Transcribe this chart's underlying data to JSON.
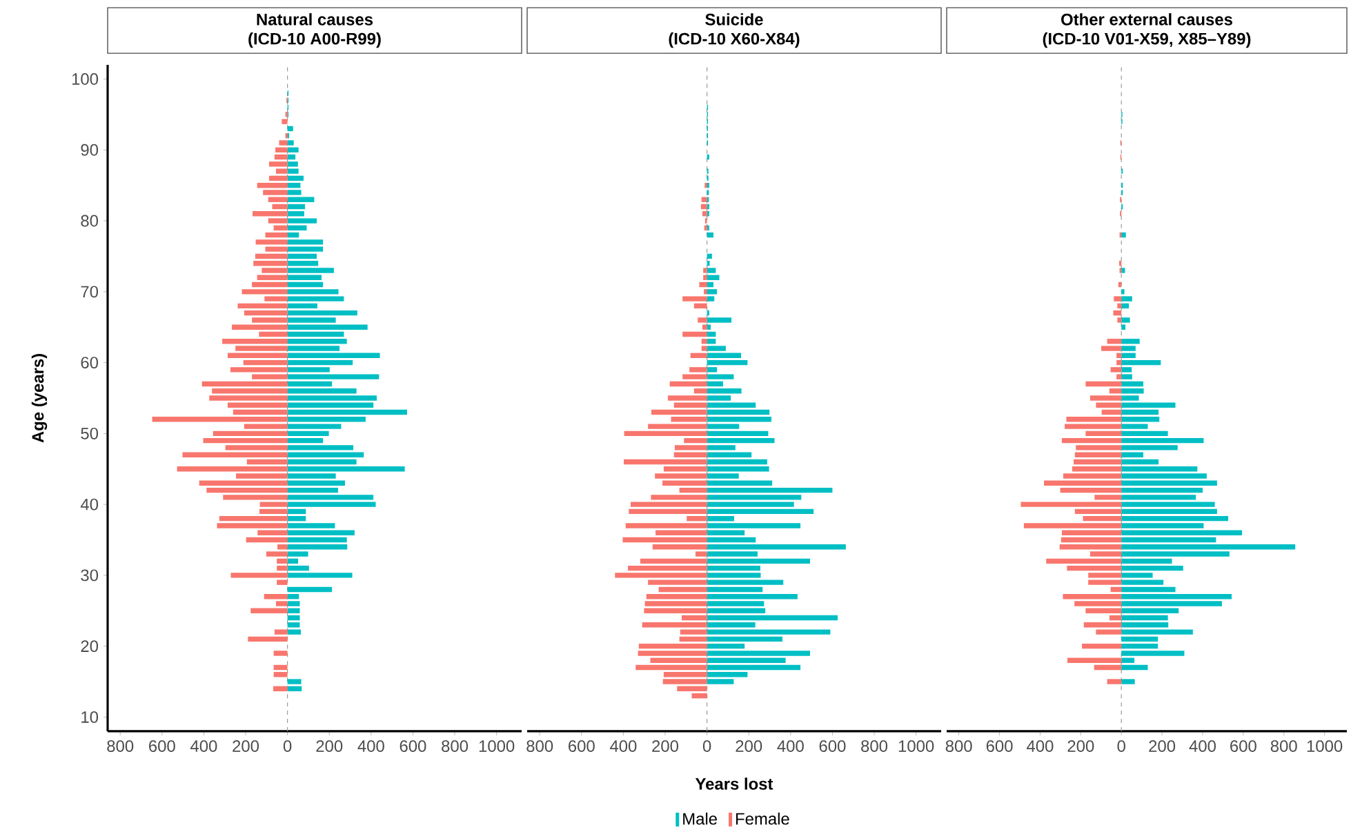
{
  "chart_data": [
    {
      "type": "bar",
      "orientation": "horizontal",
      "stacked": true,
      "title": "Natural causes",
      "subtitle": "(ICD-10 A00-R99)",
      "ylabel": "Age (years)",
      "x": [
        14,
        15,
        16,
        17,
        18,
        19,
        20,
        21,
        22,
        23,
        24,
        25,
        26,
        27,
        28,
        29,
        30,
        31,
        32,
        33,
        34,
        35,
        36,
        37,
        38,
        39,
        40,
        41,
        42,
        43,
        44,
        45,
        46,
        47,
        48,
        49,
        50,
        51,
        52,
        53,
        54,
        55,
        56,
        57,
        58,
        59,
        60,
        61,
        62,
        63,
        64,
        65,
        66,
        67,
        68,
        69,
        70,
        71,
        72,
        73,
        74,
        75,
        76,
        77,
        78,
        79,
        80,
        81,
        82,
        83,
        84,
        85,
        86,
        87,
        88,
        89,
        90,
        91,
        92,
        93,
        94,
        95,
        96,
        97,
        98
      ],
      "series": [
        {
          "color": "#f8766d",
          "values": [
            -68,
            null,
            -66,
            -66,
            null,
            -66,
            null,
            -189,
            -62,
            null,
            null,
            -176,
            -55,
            -112,
            null,
            -51,
            -271,
            -51,
            -51,
            -101,
            -48,
            -198,
            -143,
            -337,
            -326,
            -134,
            -132,
            -308,
            -387,
            -422,
            -246,
            -528,
            -194,
            -502,
            -297,
            -403,
            -356,
            -207,
            -647,
            -260,
            -286,
            -374,
            -361,
            -409,
            -170,
            -273,
            -211,
            -286,
            -249,
            -312,
            -136,
            -266,
            -170,
            -207,
            -238,
            -110,
            -218,
            -170,
            -145,
            -123,
            -163,
            -154,
            -106,
            -152,
            -106,
            -66,
            -92,
            -167,
            -73,
            -92,
            -117,
            -145,
            -88,
            -55,
            -88,
            -62,
            -58,
            -40,
            -10,
            null,
            -27,
            -10,
            null,
            -5,
            null
          ]
        },
        {
          "color": "#00bfc4",
          "values": [
            68,
            66,
            null,
            null,
            null,
            null,
            null,
            null,
            64,
            59,
            59,
            59,
            59,
            55,
            213,
            null,
            310,
            103,
            51,
            99,
            286,
            284,
            321,
            227,
            88,
            88,
            422,
            411,
            242,
            275,
            231,
            561,
            330,
            365,
            315,
            170,
            198,
            257,
            374,
            572,
            411,
            427,
            330,
            213,
            438,
            202,
            312,
            442,
            249,
            284,
            270,
            383,
            231,
            334,
            143,
            270,
            244,
            170,
            163,
            222,
            147,
            140,
            170,
            170,
            55,
            92,
            140,
            80,
            84,
            128,
            66,
            62,
            77,
            53,
            50,
            38,
            53,
            30,
            8,
            27,
            null,
            5,
            5,
            5,
            5
          ]
        }
      ],
      "xlim": [
        -860,
        1120
      ],
      "ylim": [
        8,
        102
      ],
      "xticks": [
        {
          "value": -800,
          "label": "800"
        },
        {
          "value": -600,
          "label": "600"
        },
        {
          "value": -400,
          "label": "400"
        },
        {
          "value": -200,
          "label": "200"
        },
        0,
        200,
        400,
        600,
        800,
        1000
      ],
      "yticks": [
        10,
        20,
        30,
        40,
        50,
        60,
        70,
        80,
        90,
        100
      ],
      "ref_lines": [
        {
          "axis": "x",
          "value": 0,
          "color": "#999999",
          "line_style": "dashed"
        }
      ]
    },
    {
      "type": "bar",
      "orientation": "horizontal",
      "stacked": true,
      "title": "Suicide",
      "subtitle": "(ICD-10 X60-X84)",
      "xlabel": "Years lost",
      "legend": "bottom",
      "tick_labels": "x",
      "x": [
        13,
        14,
        15,
        16,
        17,
        18,
        19,
        20,
        21,
        22,
        23,
        24,
        25,
        26,
        27,
        28,
        29,
        30,
        31,
        32,
        33,
        34,
        35,
        36,
        37,
        38,
        39,
        40,
        41,
        42,
        43,
        44,
        45,
        46,
        47,
        48,
        49,
        50,
        51,
        52,
        53,
        54,
        55,
        56,
        57,
        58,
        59,
        60,
        61,
        62,
        63,
        64,
        65,
        66,
        67,
        68,
        69,
        70,
        71,
        72,
        73,
        74,
        75,
        76,
        77,
        78,
        79,
        80,
        81,
        82,
        83,
        84,
        85,
        86,
        87,
        88,
        89,
        90,
        91,
        92,
        93,
        94,
        95,
        96
      ],
      "series": [
        {
          "name": "Female",
          "color": "#f8766d",
          "values": [
            -73,
            -143,
            -211,
            -207,
            -341,
            -271,
            -330,
            -326,
            -132,
            -128,
            -310,
            -121,
            -301,
            -297,
            -290,
            -231,
            -282,
            -440,
            -378,
            -319,
            -55,
            -260,
            -403,
            -246,
            -389,
            -97,
            -374,
            -365,
            -268,
            -132,
            -213,
            -249,
            -207,
            -398,
            -158,
            -154,
            -110,
            -396,
            -282,
            -172,
            -266,
            -158,
            -187,
            -62,
            -178,
            -117,
            -84,
            null,
            -79,
            -26,
            -26,
            -117,
            -22,
            -44,
            null,
            -62,
            -117,
            -15,
            -37,
            -18,
            -18,
            null,
            null,
            null,
            null,
            null,
            -13,
            -9,
            -22,
            -29,
            -26,
            null,
            -11,
            null,
            null,
            null,
            null,
            null,
            null,
            null,
            null,
            null,
            null,
            null
          ]
        },
        {
          "name": "Male",
          "color": "#00bfc4",
          "values": [
            null,
            null,
            128,
            194,
            447,
            376,
            493,
            180,
            361,
            590,
            231,
            625,
            279,
            273,
            433,
            266,
            365,
            257,
            255,
            493,
            242,
            664,
            233,
            180,
            447,
            130,
            510,
            416,
            451,
            600,
            312,
            152,
            297,
            288,
            213,
            136,
            323,
            293,
            154,
            308,
            299,
            233,
            114,
            165,
            77,
            128,
            48,
            194,
            163,
            90,
            42,
            42,
            18,
            117,
            11,
            null,
            35,
            48,
            31,
            59,
            42,
            13,
            24,
            null,
            null,
            31,
            11,
            null,
            11,
            11,
            9,
            9,
            11,
            7,
            7,
            null,
            11,
            null,
            5,
            5,
            5,
            5,
            5,
            5
          ]
        }
      ],
      "xlim": [
        -860,
        1120
      ],
      "ylim": [
        8,
        102
      ],
      "xticks": [
        {
          "value": -800,
          "label": "800"
        },
        {
          "value": -600,
          "label": "600"
        },
        {
          "value": -400,
          "label": "400"
        },
        {
          "value": -200,
          "label": "200"
        },
        0,
        200,
        400,
        600,
        800,
        1000
      ],
      "ref_lines": [
        {
          "axis": "x",
          "value": 0,
          "color": "#999999",
          "line_style": "dashed"
        }
      ]
    },
    {
      "type": "bar",
      "orientation": "horizontal",
      "stacked": true,
      "title": "Other external causes",
      "subtitle": "(ICD-10 V01-X59, X85–Y89)",
      "tick_labels": "x",
      "x": [
        15,
        16,
        17,
        18,
        19,
        20,
        21,
        22,
        23,
        24,
        25,
        26,
        27,
        28,
        29,
        30,
        31,
        32,
        33,
        34,
        35,
        36,
        37,
        38,
        39,
        40,
        41,
        42,
        43,
        44,
        45,
        46,
        47,
        48,
        49,
        50,
        51,
        52,
        53,
        54,
        55,
        56,
        57,
        58,
        59,
        60,
        61,
        62,
        63,
        64,
        65,
        66,
        67,
        68,
        69,
        70,
        71,
        72,
        73,
        74,
        75,
        76,
        77,
        78,
        79,
        80,
        81,
        82,
        83,
        84,
        85,
        86,
        87,
        88,
        89,
        90,
        91,
        92,
        93,
        94,
        95
      ],
      "series": [
        {
          "color": "#f8766d",
          "values": [
            -70,
            null,
            -134,
            -266,
            null,
            -194,
            null,
            -125,
            -185,
            -59,
            -176,
            -231,
            -288,
            -53,
            -163,
            -163,
            -268,
            -370,
            -154,
            -304,
            -297,
            -293,
            -480,
            -189,
            -229,
            -495,
            -132,
            -301,
            -381,
            -286,
            -242,
            -235,
            -229,
            -224,
            -293,
            -176,
            -279,
            -271,
            -97,
            -125,
            -154,
            -59,
            -176,
            -24,
            -53,
            -24,
            -24,
            -99,
            -70,
            null,
            null,
            -20,
            -40,
            -20,
            -37,
            null,
            -15,
            null,
            -9,
            -11,
            null,
            null,
            null,
            -9,
            null,
            null,
            -7,
            null,
            -7,
            null,
            null,
            null,
            null,
            null,
            -5,
            null,
            -5,
            null,
            null,
            null,
            null
          ]
        },
        {
          "color": "#00bfc4",
          "values": [
            66,
            null,
            130,
            64,
            310,
            180,
            180,
            352,
            231,
            229,
            282,
            495,
            543,
            266,
            207,
            154,
            304,
            249,
            532,
            856,
            466,
            594,
            405,
            526,
            471,
            460,
            367,
            400,
            471,
            420,
            374,
            183,
            108,
            277,
            405,
            229,
            130,
            187,
            183,
            266,
            86,
            110,
            108,
            53,
            51,
            194,
            70,
            70,
            90,
            null,
            20,
            42,
            null,
            37,
            53,
            15,
            null,
            null,
            18,
            null,
            null,
            null,
            null,
            22,
            null,
            null,
            null,
            7,
            null,
            7,
            7,
            null,
            7,
            null,
            null,
            null,
            null,
            null,
            null,
            5,
            5
          ]
        }
      ],
      "xlim": [
        -860,
        1110
      ],
      "ylim": [
        8,
        102
      ],
      "xticks": [
        {
          "value": -800,
          "label": "800"
        },
        {
          "value": -600,
          "label": "600"
        },
        {
          "value": -400,
          "label": "400"
        },
        {
          "value": -200,
          "label": "200"
        },
        0,
        200,
        400,
        600,
        800,
        1000
      ],
      "ref_lines": [
        {
          "axis": "x",
          "value": 0,
          "color": "#999999",
          "line_style": "dashed"
        }
      ]
    }
  ]
}
